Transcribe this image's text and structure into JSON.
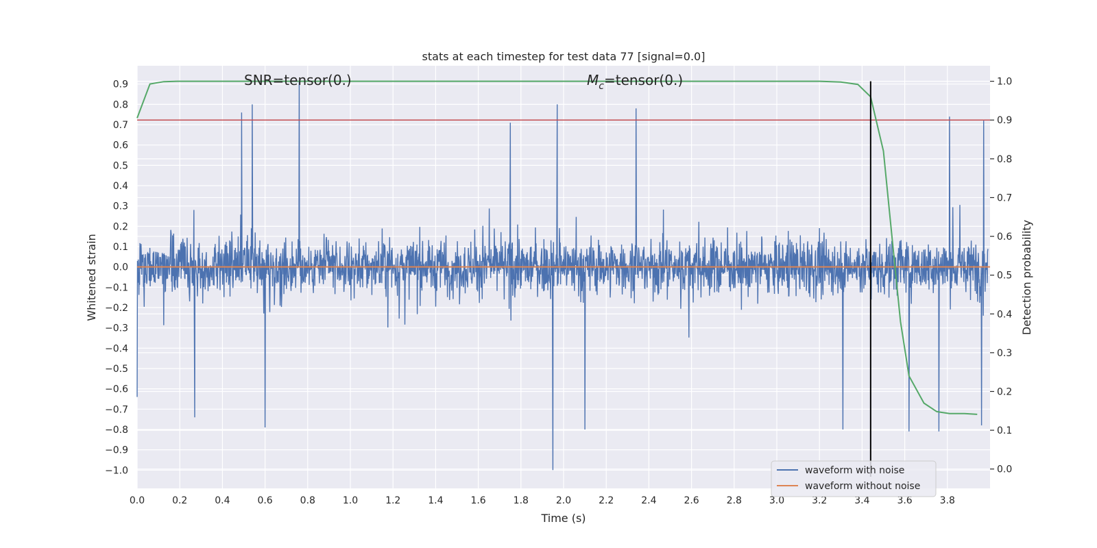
{
  "chart_data": {
    "type": "line",
    "title": "stats at each timestep for test data 77 [signal=0.0]",
    "xlabel": "Time (s)",
    "ylabel": "Whitened strain",
    "y2label": "Detection probability",
    "xlim": [
      0.0,
      4.0
    ],
    "ylim": [
      -1.09,
      0.99
    ],
    "y2lim": [
      -0.05,
      1.04
    ],
    "xticks": [
      "0.0",
      "0.2",
      "0.4",
      "0.6",
      "0.8",
      "1.0",
      "1.2",
      "1.4",
      "1.6",
      "1.8",
      "2.0",
      "2.2",
      "2.4",
      "2.6",
      "2.8",
      "3.0",
      "3.2",
      "3.4",
      "3.6",
      "3.8"
    ],
    "yticks": [
      "0.9",
      "0.8",
      "0.7",
      "0.6",
      "0.5",
      "0.4",
      "0.3",
      "0.2",
      "0.1",
      "0.0",
      "−0.1",
      "−0.2",
      "−0.3",
      "−0.4",
      "−0.5",
      "−0.6",
      "−0.7",
      "−0.8",
      "−0.9",
      "−1.0"
    ],
    "y2ticks": [
      "1.0",
      "0.9",
      "0.8",
      "0.7",
      "0.6",
      "0.5",
      "0.4",
      "0.3",
      "0.2",
      "0.1",
      "0.0"
    ],
    "grid": true,
    "legend_position": "lower right",
    "annotations": [
      {
        "text": "SNR=tensor(0.)",
        "x": 0.5,
        "y": 0.93
      },
      {
        "text_prefix": "M",
        "text_sub": "c",
        "text_suffix": "=tensor(0.)",
        "x": 2.1,
        "y": 0.93
      }
    ],
    "series": [
      {
        "name": "waveform with noise",
        "color": "#4c72b0",
        "axis": "left",
        "note": "dense noise trace, approx +/-0.2 typical amplitude",
        "peaks": [
          {
            "x": 0.0,
            "y": -0.64
          },
          {
            "x": 0.27,
            "y": -0.74
          },
          {
            "x": 0.49,
            "y": 0.76
          },
          {
            "x": 0.54,
            "y": 0.8
          },
          {
            "x": 0.6,
            "y": -0.79
          },
          {
            "x": 0.76,
            "y": 0.91
          },
          {
            "x": 1.75,
            "y": 0.71
          },
          {
            "x": 1.95,
            "y": -1.0
          },
          {
            "x": 1.97,
            "y": 0.8
          },
          {
            "x": 2.1,
            "y": -0.8
          },
          {
            "x": 2.34,
            "y": 0.78
          },
          {
            "x": 3.31,
            "y": -0.8
          },
          {
            "x": 3.62,
            "y": -0.81
          },
          {
            "x": 3.76,
            "y": -0.81
          },
          {
            "x": 3.81,
            "y": 0.74
          },
          {
            "x": 3.96,
            "y": -0.78
          },
          {
            "x": 3.97,
            "y": 0.72
          }
        ]
      },
      {
        "name": "waveform without noise",
        "color": "#dd8452",
        "axis": "left",
        "x": [
          0.0,
          4.0
        ],
        "values": [
          0.0,
          0.0
        ]
      },
      {
        "color": "#55a868",
        "axis": "right",
        "x": [
          0.0,
          0.06,
          0.125,
          0.19,
          0.5,
          1.0,
          2.0,
          3.0,
          3.2,
          3.3,
          3.38,
          3.44,
          3.5,
          3.54,
          3.58,
          3.62,
          3.69,
          3.75,
          3.81,
          3.88,
          3.94
        ],
        "values": [
          0.905,
          0.993,
          0.999,
          1.0,
          1.0,
          1.0,
          1.0,
          1.0,
          1.0,
          0.998,
          0.992,
          0.96,
          0.82,
          0.6,
          0.38,
          0.24,
          0.17,
          0.148,
          0.143,
          0.143,
          0.141
        ]
      }
    ],
    "hlines": [
      {
        "y2": 0.9,
        "color": "#c44e52"
      }
    ],
    "vlines": [
      {
        "x": 3.44,
        "color": "#000000"
      }
    ]
  }
}
